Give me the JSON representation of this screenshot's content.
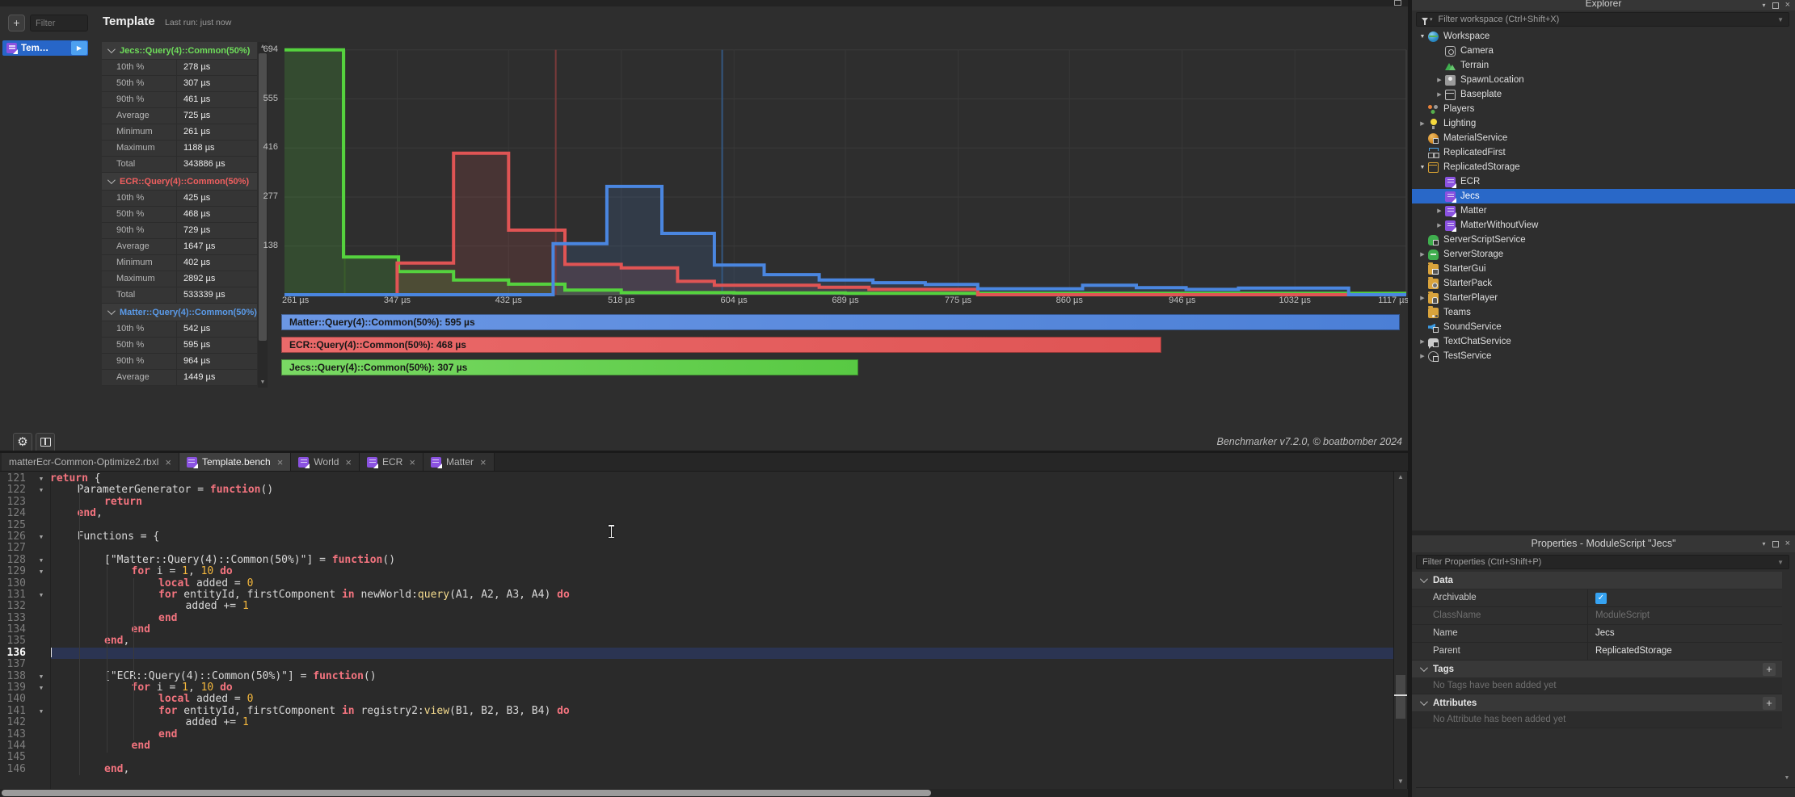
{
  "benchmarker": {
    "sidebar": {
      "add_label": "+",
      "filter_placeholder": "Filter",
      "tab_label": "Tem…",
      "play_icon": "▶"
    },
    "template": {
      "title": "Template",
      "last_run": "Last run: just now",
      "sections": [
        {
          "name": "Jecs::Query(4)::Common(50%)",
          "color": "#6edd5a",
          "rows": [
            [
              "10th %",
              "278 µs"
            ],
            [
              "50th %",
              "307 µs"
            ],
            [
              "90th %",
              "461 µs"
            ],
            [
              "Average",
              "725 µs"
            ],
            [
              "Minimum",
              "261 µs"
            ],
            [
              "Maximum",
              "1188 µs"
            ],
            [
              "Total",
              "343886 µs"
            ]
          ]
        },
        {
          "name": "ECR::Query(4)::Common(50%)",
          "color": "#ef5f5f",
          "rows": [
            [
              "10th %",
              "425 µs"
            ],
            [
              "50th %",
              "468 µs"
            ],
            [
              "90th %",
              "729 µs"
            ],
            [
              "Average",
              "1647 µs"
            ],
            [
              "Minimum",
              "402 µs"
            ],
            [
              "Maximum",
              "2892 µs"
            ],
            [
              "Total",
              "533339 µs"
            ]
          ]
        },
        {
          "name": "Matter::Query(4)::Common(50%)",
          "color": "#5a9ae8",
          "rows": [
            [
              "10th %",
              "542 µs"
            ],
            [
              "50th %",
              "595 µs"
            ],
            [
              "90th %",
              "964 µs"
            ],
            [
              "Average",
              "1449 µs"
            ]
          ]
        }
      ]
    },
    "footer": {
      "version": "Benchmarker v7.2.0, © boatbomber 2024"
    }
  },
  "chart_data": {
    "type": "histogram",
    "xlabel": "µs",
    "x_ticks": [
      261,
      347,
      432,
      518,
      604,
      689,
      775,
      860,
      946,
      1032,
      1117
    ],
    "x_tick_suffix": " µs",
    "y_ticks": [
      138,
      277,
      416,
      555,
      694
    ],
    "xlim": [
      261,
      1117
    ],
    "ylim": [
      0,
      694
    ],
    "grid": true,
    "legend_position": "bottom",
    "series": [
      {
        "name": "Jecs::Query(4)::Common(50%)",
        "color": "#55d23e",
        "fill_opacity": 0.18,
        "median_us": 307,
        "median_color": "#3a5c2c",
        "steps": [
          [
            261,
            694
          ],
          [
            306,
            107
          ],
          [
            348,
            66
          ],
          [
            390,
            42
          ],
          [
            432,
            30
          ],
          [
            475,
            13
          ],
          [
            518,
            6
          ],
          [
            604,
            5
          ],
          [
            689,
            4
          ],
          [
            1117,
            4
          ]
        ]
      },
      {
        "name": "ECR::Query(4)::Common(50%)",
        "color": "#e05454",
        "fill_opacity": 0.15,
        "median_us": 468,
        "median_color": "#7a3a3a",
        "steps": [
          [
            261,
            0
          ],
          [
            347,
            90
          ],
          [
            390,
            401
          ],
          [
            432,
            183
          ],
          [
            475,
            86
          ],
          [
            518,
            76
          ],
          [
            561,
            38
          ],
          [
            589,
            27
          ],
          [
            669,
            21
          ],
          [
            707,
            15
          ],
          [
            790,
            0
          ],
          [
            1117,
            0
          ]
        ]
      },
      {
        "name": "Matter::Query(4)::Common(50%)",
        "color": "#4a86e0",
        "fill_opacity": 0.15,
        "median_us": 595,
        "median_color": "#33567e",
        "steps": [
          [
            261,
            0
          ],
          [
            466,
            145
          ],
          [
            507,
            307
          ],
          [
            549,
            174
          ],
          [
            589,
            84
          ],
          [
            627,
            57
          ],
          [
            669,
            42
          ],
          [
            710,
            34
          ],
          [
            750,
            29
          ],
          [
            790,
            17
          ],
          [
            870,
            27
          ],
          [
            911,
            20
          ],
          [
            949,
            15
          ],
          [
            989,
            19
          ],
          [
            1073,
            0
          ],
          [
            1117,
            0
          ]
        ]
      }
    ],
    "legend": [
      {
        "text": "Matter::Query(4)::Common(50%): 595 µs",
        "value": 595,
        "color_from": "#6b97e4",
        "color_to": "#4b7fd6"
      },
      {
        "text": "ECR::Query(4)::Common(50%): 468 µs",
        "value": 468,
        "color_from": "#ea6a6a",
        "color_to": "#df5454"
      },
      {
        "text": "Jecs::Query(4)::Common(50%): 307 µs",
        "value": 307,
        "color_from": "#7ad964",
        "color_to": "#58c943"
      }
    ],
    "legend_max_value": 595
  },
  "editor": {
    "tabs": [
      {
        "label": "matterEcr-Common-Optimize2.rbxl",
        "icon": false,
        "active": false,
        "close": "×"
      },
      {
        "label": "Template.bench",
        "icon": true,
        "active": true,
        "close": "×"
      },
      {
        "label": "World",
        "icon": true,
        "active": false,
        "close": "×"
      },
      {
        "label": "ECR",
        "icon": true,
        "active": false,
        "close": "×"
      },
      {
        "label": "Matter",
        "icon": true,
        "active": false,
        "close": "×"
      }
    ],
    "code": {
      "first_line": 121,
      "current_line": 136,
      "lines": [
        {
          "n": 121,
          "ind": 0,
          "fold": true,
          "tokens": [
            [
              "k",
              "return"
            ],
            [
              "t",
              " {"
            ]
          ]
        },
        {
          "n": 122,
          "ind": 1,
          "fold": true,
          "tokens": [
            [
              "t",
              "ParameterGenerator = "
            ],
            [
              "k",
              "function"
            ],
            [
              "t",
              "()"
            ]
          ]
        },
        {
          "n": 123,
          "ind": 2,
          "fold": false,
          "tokens": [
            [
              "k",
              "return"
            ]
          ]
        },
        {
          "n": 124,
          "ind": 1,
          "fold": false,
          "tokens": [
            [
              "k",
              "end"
            ],
            [
              "t",
              ","
            ]
          ]
        },
        {
          "n": 125,
          "ind": 0,
          "fold": false,
          "tokens": []
        },
        {
          "n": 126,
          "ind": 1,
          "fold": true,
          "tokens": [
            [
              "t",
              "Functions = {"
            ]
          ]
        },
        {
          "n": 127,
          "ind": 0,
          "fold": false,
          "tokens": []
        },
        {
          "n": 128,
          "ind": 2,
          "fold": true,
          "tokens": [
            [
              "t",
              "[\"Matter::Query(4)::Common(50%)\"] = "
            ],
            [
              "k",
              "function"
            ],
            [
              "t",
              "()"
            ]
          ]
        },
        {
          "n": 129,
          "ind": 3,
          "fold": true,
          "tokens": [
            [
              "k",
              "for"
            ],
            [
              "t",
              " i = "
            ],
            [
              "n",
              "1"
            ],
            [
              "t",
              ", "
            ],
            [
              "n",
              "10"
            ],
            [
              "t",
              " "
            ],
            [
              "k",
              "do"
            ]
          ]
        },
        {
          "n": 130,
          "ind": 4,
          "fold": false,
          "tokens": [
            [
              "k",
              "local"
            ],
            [
              "t",
              " added = "
            ],
            [
              "n",
              "0"
            ]
          ]
        },
        {
          "n": 131,
          "ind": 4,
          "fold": true,
          "tokens": [
            [
              "k",
              "for"
            ],
            [
              "t",
              " entityId, firstComponent "
            ],
            [
              "k",
              "in"
            ],
            [
              "t",
              " newWorld:"
            ],
            [
              "f",
              "query"
            ],
            [
              "t",
              "(A1, A2, A3, A4) "
            ],
            [
              "k",
              "do"
            ]
          ]
        },
        {
          "n": 132,
          "ind": 5,
          "fold": false,
          "tokens": [
            [
              "t",
              "added += "
            ],
            [
              "n",
              "1"
            ]
          ]
        },
        {
          "n": 133,
          "ind": 4,
          "fold": false,
          "tokens": [
            [
              "k",
              "end"
            ]
          ]
        },
        {
          "n": 134,
          "ind": 3,
          "fold": false,
          "tokens": [
            [
              "k",
              "end"
            ]
          ]
        },
        {
          "n": 135,
          "ind": 2,
          "fold": false,
          "tokens": [
            [
              "k",
              "end"
            ],
            [
              "t",
              ","
            ]
          ]
        },
        {
          "n": 136,
          "ind": 0,
          "fold": false,
          "tokens": []
        },
        {
          "n": 137,
          "ind": 0,
          "fold": false,
          "tokens": []
        },
        {
          "n": 138,
          "ind": 2,
          "fold": true,
          "tokens": [
            [
              "t",
              "[\"ECR::Query(4)::Common(50%)\"] = "
            ],
            [
              "k",
              "function"
            ],
            [
              "t",
              "()"
            ]
          ]
        },
        {
          "n": 139,
          "ind": 3,
          "fold": true,
          "tokens": [
            [
              "k",
              "for"
            ],
            [
              "t",
              " i = "
            ],
            [
              "n",
              "1"
            ],
            [
              "t",
              ", "
            ],
            [
              "n",
              "10"
            ],
            [
              "t",
              " "
            ],
            [
              "k",
              "do"
            ]
          ]
        },
        {
          "n": 140,
          "ind": 4,
          "fold": false,
          "tokens": [
            [
              "k",
              "local"
            ],
            [
              "t",
              " added = "
            ],
            [
              "n",
              "0"
            ]
          ]
        },
        {
          "n": 141,
          "ind": 4,
          "fold": true,
          "tokens": [
            [
              "k",
              "for"
            ],
            [
              "t",
              " entityId, firstComponent "
            ],
            [
              "k",
              "in"
            ],
            [
              "t",
              " registry2:"
            ],
            [
              "f",
              "view"
            ],
            [
              "t",
              "(B1, B2, B3, B4) "
            ],
            [
              "k",
              "do"
            ]
          ]
        },
        {
          "n": 142,
          "ind": 5,
          "fold": false,
          "tokens": [
            [
              "t",
              "added += "
            ],
            [
              "n",
              "1"
            ]
          ]
        },
        {
          "n": 143,
          "ind": 4,
          "fold": false,
          "tokens": [
            [
              "k",
              "end"
            ]
          ]
        },
        {
          "n": 144,
          "ind": 3,
          "fold": false,
          "tokens": [
            [
              "k",
              "end"
            ]
          ]
        },
        {
          "n": 145,
          "ind": 0,
          "fold": false,
          "tokens": []
        },
        {
          "n": 146,
          "ind": 2,
          "fold": false,
          "tokens": [
            [
              "k",
              "end"
            ],
            [
              "t",
              ","
            ]
          ]
        }
      ]
    }
  },
  "explorer": {
    "title": "Explorer",
    "filter_placeholder": "Filter workspace (Ctrl+Shift+X)",
    "items": [
      {
        "label": "Workspace",
        "icon": "workspace",
        "depth": 0,
        "arrow": "down"
      },
      {
        "label": "Camera",
        "icon": "camera",
        "depth": 1,
        "arrow": null
      },
      {
        "label": "Terrain",
        "icon": "terrain",
        "depth": 1,
        "arrow": null
      },
      {
        "label": "SpawnLocation",
        "icon": "spawnlocation",
        "depth": 1,
        "arrow": "right"
      },
      {
        "label": "Baseplate",
        "icon": "baseplate",
        "depth": 1,
        "arrow": "right"
      },
      {
        "label": "Players",
        "icon": "players",
        "depth": 0,
        "arrow": null
      },
      {
        "label": "Lighting",
        "icon": "lighting",
        "depth": 0,
        "arrow": "right"
      },
      {
        "label": "MaterialService",
        "icon": "materialservice",
        "depth": 0,
        "arrow": null
      },
      {
        "label": "ReplicatedFirst",
        "icon": "replicatedfirst",
        "depth": 0,
        "arrow": null
      },
      {
        "label": "ReplicatedStorage",
        "icon": "replicatedstorage",
        "depth": 0,
        "arrow": "down"
      },
      {
        "label": "ECR",
        "icon": "script",
        "depth": 1,
        "arrow": null
      },
      {
        "label": "Jecs",
        "icon": "script",
        "depth": 1,
        "arrow": null,
        "selected": true
      },
      {
        "label": "Matter",
        "icon": "script",
        "depth": 1,
        "arrow": "right"
      },
      {
        "label": "MatterWithoutView",
        "icon": "script",
        "depth": 1,
        "arrow": "right"
      },
      {
        "label": "ServerScriptService",
        "icon": "serverscriptservice",
        "depth": 0,
        "arrow": null
      },
      {
        "label": "ServerStorage",
        "icon": "serverstorage",
        "depth": 0,
        "arrow": "right"
      },
      {
        "label": "StarterGui",
        "icon": "startergui",
        "depth": 0,
        "arrow": null
      },
      {
        "label": "StarterPack",
        "icon": "starterpack",
        "depth": 0,
        "arrow": null
      },
      {
        "label": "StarterPlayer",
        "icon": "starterplayer",
        "depth": 0,
        "arrow": "right"
      },
      {
        "label": "Teams",
        "icon": "teams",
        "depth": 0,
        "arrow": null
      },
      {
        "label": "SoundService",
        "icon": "soundservice",
        "depth": 0,
        "arrow": null
      },
      {
        "label": "TextChatService",
        "icon": "textchatservice",
        "depth": 0,
        "arrow": "right"
      },
      {
        "label": "TestService",
        "icon": "testservice",
        "depth": 0,
        "arrow": "right"
      }
    ]
  },
  "properties": {
    "title": "Properties - ModuleScript \"Jecs\"",
    "filter_placeholder": "Filter Properties (Ctrl+Shift+P)",
    "sections": [
      {
        "name": "Data",
        "add": false,
        "rows": [
          {
            "label": "Archivable",
            "type": "checkbox",
            "checked": true,
            "check_glyph": "✓"
          },
          {
            "label": "ClassName",
            "value": "ModuleScript",
            "disabled": true
          },
          {
            "label": "Name",
            "value": "Jecs"
          },
          {
            "label": "Parent",
            "value": "ReplicatedStorage"
          }
        ]
      },
      {
        "name": "Tags",
        "add": true,
        "add_label": "+",
        "empty": "No Tags have been added yet"
      },
      {
        "name": "Attributes",
        "add": true,
        "add_label": "+",
        "empty": "No Attribute has been added yet"
      }
    ]
  },
  "colors": {
    "selection_blue": "#2968c8",
    "checkbox_blue": "#36a3f2",
    "series_green": "#55d23e",
    "series_red": "#e05454",
    "series_blue": "#4a86e0"
  }
}
